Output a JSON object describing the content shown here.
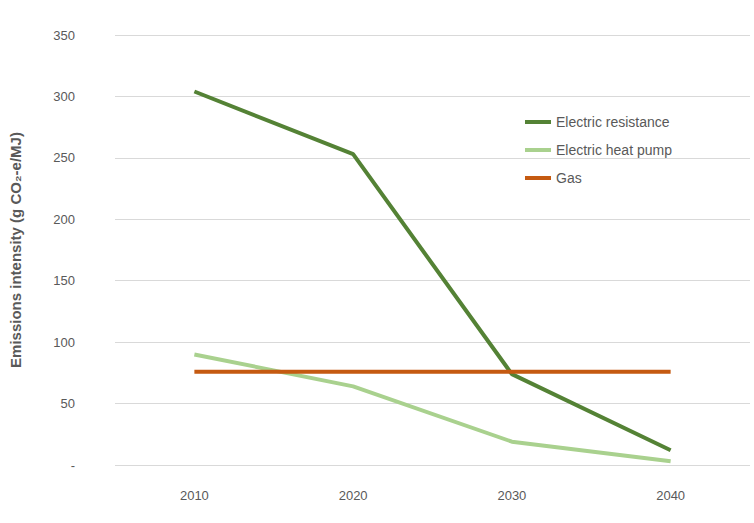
{
  "chart_data": {
    "type": "line",
    "y_label": "Emissions intensity (g CO₂-e/MJ)",
    "categories": [
      "2010",
      "2020",
      "2030",
      "2040"
    ],
    "series": [
      {
        "name": "Electric resistance",
        "color": "#548235",
        "values": [
          304,
          253,
          74,
          12
        ]
      },
      {
        "name": "Electric heat pump",
        "color": "#A9D18E",
        "values": [
          90,
          64,
          19,
          3
        ]
      },
      {
        "name": "Gas",
        "color": "#C55A11",
        "values": [
          76,
          76,
          76,
          76
        ]
      }
    ],
    "ylim": [
      0,
      350
    ],
    "yticks": [
      {
        "value": 0,
        "label": "-"
      },
      50,
      100,
      150,
      200,
      250,
      300,
      350
    ],
    "grid": true,
    "legend": "upper right",
    "marker": "none",
    "line_style": "solid"
  }
}
